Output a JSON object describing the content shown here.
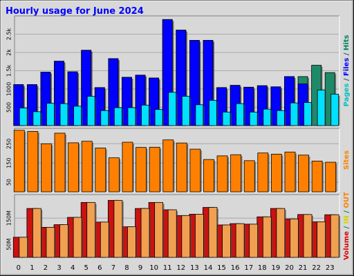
{
  "chart_data": {
    "type": "bar",
    "title": "Hourly usage for June 2024",
    "categories": [
      "0",
      "1",
      "2",
      "3",
      "4",
      "5",
      "6",
      "7",
      "8",
      "9",
      "10",
      "11",
      "12",
      "13",
      "14",
      "15",
      "16",
      "17",
      "18",
      "19",
      "20",
      "21",
      "22",
      "23"
    ],
    "panels": [
      {
        "id": "hits",
        "ylim": [
          0,
          3000
        ],
        "yticks": [
          {
            "value": 500,
            "label": "500"
          },
          {
            "value": 1000,
            "label": "1000"
          },
          {
            "value": 1500,
            "label": "1.5k"
          },
          {
            "value": 2000,
            "label": "2k"
          },
          {
            "value": 2500,
            "label": "2.5k"
          }
        ],
        "side_label": [
          {
            "text": "Pages",
            "color": "#00c0c0"
          },
          {
            "text": " / ",
            "color": "#006080"
          },
          {
            "text": "Files",
            "color": "#0000ff"
          },
          {
            "text": " / ",
            "color": "#006080"
          },
          {
            "text": "Hits",
            "color": "#008060"
          }
        ],
        "series": [
          {
            "name": "Hits",
            "color": "#1f8a68",
            "values": [
              1120,
              1120,
              1460,
              1760,
              1470,
              2060,
              1040,
              1830,
              1320,
              1380,
              1300,
              2900,
              2610,
              2330,
              2330,
              1040,
              1100,
              1050,
              1090,
              1060,
              1340,
              1340,
              1650,
              1450
            ]
          },
          {
            "name": "Files",
            "color": "#0000ff",
            "values": [
              1120,
              1120,
              1460,
              1760,
              1470,
              2060,
              1040,
              1830,
              1320,
              1380,
              1300,
              2900,
              2610,
              2330,
              2330,
              1040,
              1100,
              1050,
              1090,
              1060,
              1340,
              1140,
              0,
              0
            ]
          },
          {
            "name": "Pages",
            "color": "#00e0ff",
            "values": [
              480,
              380,
              610,
              600,
              530,
              800,
              410,
              490,
              490,
              560,
              440,
              910,
              800,
              570,
              690,
              370,
              600,
              370,
              450,
              410,
              620,
              630,
              970,
              860
            ]
          }
        ]
      },
      {
        "id": "sites",
        "ylim": [
          0,
          330
        ],
        "yticks": [
          {
            "value": 50,
            "label": "50"
          },
          {
            "value": 150,
            "label": "150"
          },
          {
            "value": 250,
            "label": "250"
          }
        ],
        "side_label": [
          {
            "text": "Sites",
            "color": "#ff8000"
          }
        ],
        "series": [
          {
            "name": "Sites",
            "color": "#ff8000",
            "values": [
              320,
              314,
              250,
              305,
              255,
              263,
              228,
              177,
              258,
              231,
              232,
              270,
              254,
              222,
              168,
              187,
              193,
              162,
              202,
              196,
              207,
              191,
              160,
              154
            ]
          }
        ]
      },
      {
        "id": "volume",
        "ylim": [
          0,
          240
        ],
        "yticks": [
          {
            "value": 50,
            "label": "50M"
          },
          {
            "value": 150,
            "label": "150M"
          }
        ],
        "side_label": [
          {
            "text": "Volume",
            "color": "#e00000"
          },
          {
            "text": "  /  ",
            "color": "#008060"
          },
          {
            "text": "IN",
            "color": "#d4d400"
          },
          {
            "text": "  /  ",
            "color": "#008060"
          },
          {
            "text": "OUT",
            "color": "#ff8000"
          }
        ],
        "series": [
          {
            "name": "Volume",
            "color": "#cc1111",
            "values": [
              77,
              187,
              115,
              125,
              153,
              210,
              135,
              218,
              117,
              187,
              210,
              182,
              160,
              165,
              191,
              124,
              129,
              127,
              155,
              187,
              147,
              164,
              136,
              163
            ]
          },
          {
            "name": "OUT",
            "color": "#f0a050",
            "values": [
              77,
              187,
              115,
              125,
              153,
              210,
              135,
              218,
              117,
              187,
              210,
              182,
              160,
              165,
              191,
              124,
              129,
              127,
              155,
              187,
              147,
              164,
              136,
              163
            ]
          }
        ]
      }
    ]
  }
}
